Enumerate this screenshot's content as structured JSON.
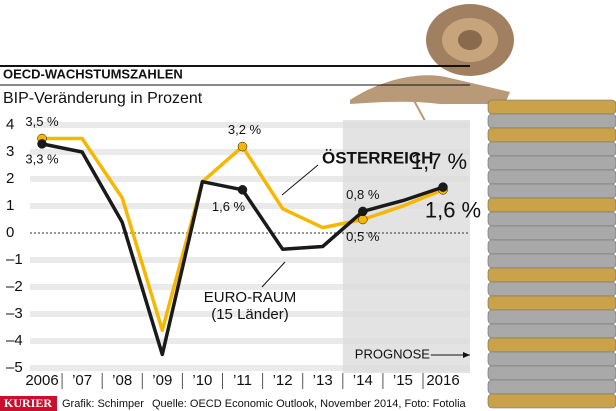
{
  "chart_data": {
    "type": "line",
    "title": "OECD-WACHSTUMSZAHLEN",
    "subtitle": "BIP-Veränderung in Prozent",
    "categories": [
      "2006",
      "’07",
      "’08",
      "’09",
      "’10",
      "’11",
      "’12",
      "’13",
      "’14",
      "’15",
      "2016"
    ],
    "series": [
      {
        "name": "ÖSTERREICH",
        "color": "#f5b700",
        "values": [
          3.5,
          3.5,
          1.3,
          -3.6,
          1.9,
          3.2,
          0.9,
          0.2,
          0.5,
          1.0,
          1.6
        ],
        "value_labels": [
          "3,5 %",
          null,
          null,
          null,
          null,
          "3,2 %",
          null,
          null,
          "0,5 %",
          null,
          "1,6 %"
        ]
      },
      {
        "name": "EURO-RAUM",
        "subname": "(15 Länder)",
        "color": "#1a1a1a",
        "values": [
          3.3,
          3.0,
          0.4,
          -4.5,
          1.9,
          1.6,
          -0.6,
          -0.5,
          0.8,
          1.2,
          1.7
        ],
        "value_labels": [
          "3,3 %",
          null,
          null,
          null,
          null,
          "1,6 %",
          null,
          null,
          "0,8 %",
          null,
          "1,7 %"
        ]
      }
    ],
    "ylim": [
      -5,
      4
    ],
    "yticks": [
      4,
      3,
      2,
      1,
      0,
      {
        "value": -1,
        "label": "–1"
      },
      {
        "value": -2,
        "label": "–2"
      },
      {
        "value": -3,
        "label": "–3"
      },
      {
        "value": -4,
        "label": "–4"
      },
      {
        "value": -5,
        "label": "–5"
      }
    ],
    "grid": true,
    "forecast_from": "’14",
    "forecast_label": "PROGNOSE",
    "footer": {
      "brand": "KURIER",
      "credit": "Grafik: Schimper",
      "source": "Quelle: OECD Economic Outlook, November 2014, Foto: Fotolia"
    }
  }
}
